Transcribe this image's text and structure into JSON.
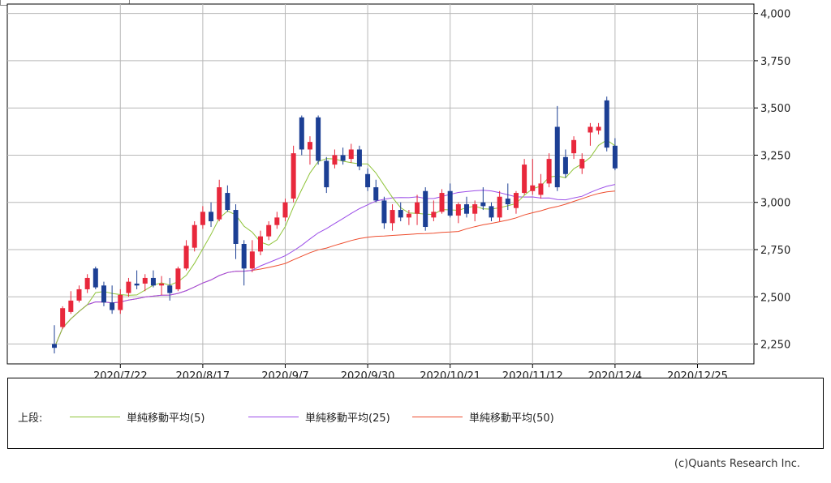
{
  "chart_data": {
    "type": "candlestick",
    "title": "",
    "y_ticks": [
      "2,250",
      "2,500",
      "2,750",
      "3,000",
      "3,250",
      "3,500",
      "3,750",
      "4,000"
    ],
    "y_tick_values": [
      2250,
      2500,
      2750,
      3000,
      3250,
      3500,
      3750,
      4000
    ],
    "ylim": [
      2145,
      4050
    ],
    "x_ticks": [
      "2020/7/22",
      "2020/8/17",
      "2020/9/7",
      "2020/9/30",
      "2020/10/21",
      "2020/11/12",
      "2020/12/4",
      "2020/12/25"
    ],
    "x_tick_index": [
      8,
      18,
      28,
      38,
      48,
      58,
      68,
      78
    ],
    "grid": true,
    "legend_position": "bottom",
    "up_color": "#e8283c",
    "down_color": "#1c3f94",
    "candles": [
      [
        2250,
        2350,
        2200,
        2230
      ],
      [
        2340,
        2450,
        2330,
        2440
      ],
      [
        2420,
        2530,
        2410,
        2480
      ],
      [
        2480,
        2560,
        2470,
        2540
      ],
      [
        2540,
        2620,
        2520,
        2600
      ],
      [
        2650,
        2660,
        2540,
        2550
      ],
      [
        2560,
        2580,
        2450,
        2470
      ],
      [
        2470,
        2560,
        2410,
        2430
      ],
      [
        2430,
        2540,
        2410,
        2510
      ],
      [
        2520,
        2600,
        2500,
        2580
      ],
      [
        2570,
        2640,
        2540,
        2560
      ],
      [
        2570,
        2620,
        2530,
        2600
      ],
      [
        2600,
        2640,
        2550,
        2560
      ],
      [
        2560,
        2610,
        2510,
        2570
      ],
      [
        2560,
        2600,
        2480,
        2520
      ],
      [
        2540,
        2660,
        2530,
        2650
      ],
      [
        2650,
        2800,
        2640,
        2770
      ],
      [
        2760,
        2900,
        2740,
        2880
      ],
      [
        2880,
        2980,
        2860,
        2950
      ],
      [
        2950,
        3000,
        2870,
        2900
      ],
      [
        2910,
        3120,
        2900,
        3080
      ],
      [
        3050,
        3090,
        2950,
        2960
      ],
      [
        2960,
        2990,
        2700,
        2780
      ],
      [
        2780,
        2800,
        2560,
        2650
      ],
      [
        2650,
        2800,
        2630,
        2740
      ],
      [
        2740,
        2850,
        2720,
        2820
      ],
      [
        2820,
        2900,
        2800,
        2880
      ],
      [
        2880,
        2950,
        2860,
        2920
      ],
      [
        2920,
        3020,
        2900,
        3000
      ],
      [
        3020,
        3300,
        3000,
        3260
      ],
      [
        3450,
        3460,
        3250,
        3280
      ],
      [
        3280,
        3350,
        3200,
        3320
      ],
      [
        3450,
        3460,
        3200,
        3220
      ],
      [
        3220,
        3240,
        3050,
        3080
      ],
      [
        3200,
        3280,
        3180,
        3250
      ],
      [
        3250,
        3290,
        3200,
        3220
      ],
      [
        3230,
        3310,
        3210,
        3280
      ],
      [
        3280,
        3300,
        3170,
        3190
      ],
      [
        3150,
        3180,
        3060,
        3080
      ],
      [
        3080,
        3120,
        3000,
        3010
      ],
      [
        3010,
        3030,
        2860,
        2890
      ],
      [
        2890,
        2990,
        2850,
        2960
      ],
      [
        2960,
        3000,
        2900,
        2920
      ],
      [
        2920,
        2960,
        2880,
        2940
      ],
      [
        2940,
        3040,
        2880,
        3000
      ],
      [
        3060,
        3080,
        2850,
        2870
      ],
      [
        2920,
        3010,
        2900,
        2950
      ],
      [
        2950,
        3070,
        2940,
        3050
      ],
      [
        3060,
        3100,
        2920,
        2930
      ],
      [
        2930,
        3000,
        2890,
        2990
      ],
      [
        2990,
        3030,
        2920,
        2940
      ],
      [
        2940,
        3010,
        2900,
        2990
      ],
      [
        3000,
        3080,
        2960,
        2980
      ],
      [
        2980,
        3000,
        2900,
        2920
      ],
      [
        2920,
        3060,
        2900,
        3030
      ],
      [
        3020,
        3100,
        2960,
        2990
      ],
      [
        2970,
        3060,
        2940,
        3050
      ],
      [
        3050,
        3230,
        3040,
        3200
      ],
      [
        3060,
        3230,
        3040,
        3090
      ],
      [
        3040,
        3150,
        3020,
        3100
      ],
      [
        3100,
        3260,
        3080,
        3230
      ],
      [
        3400,
        3510,
        3060,
        3080
      ],
      [
        3240,
        3280,
        3130,
        3150
      ],
      [
        3260,
        3350,
        3230,
        3330
      ],
      [
        3180,
        3260,
        3150,
        3230
      ],
      [
        3370,
        3420,
        3300,
        3400
      ],
      [
        3380,
        3420,
        3360,
        3400
      ],
      [
        3540,
        3560,
        3270,
        3290
      ],
      [
        3300,
        3340,
        3170,
        3180
      ]
    ],
    "ma_series": [
      {
        "name": "単純移動平均(5)",
        "color": "#8fc43a"
      },
      {
        "name": "単純移動平均(25)",
        "color": "#9b4de8"
      },
      {
        "name": "単純移動平均(50)",
        "color": "#ee4d2e"
      }
    ]
  },
  "legend": {
    "prefix": "上段:",
    "items": [
      {
        "label": "単純移動平均(5)",
        "color": "#8fc43a"
      },
      {
        "label": "単純移動平均(25)",
        "color": "#9b4de8"
      },
      {
        "label": "単純移動平均(50)",
        "color": "#ee4d2e"
      }
    ]
  },
  "credit": "(c)Quants Research Inc."
}
